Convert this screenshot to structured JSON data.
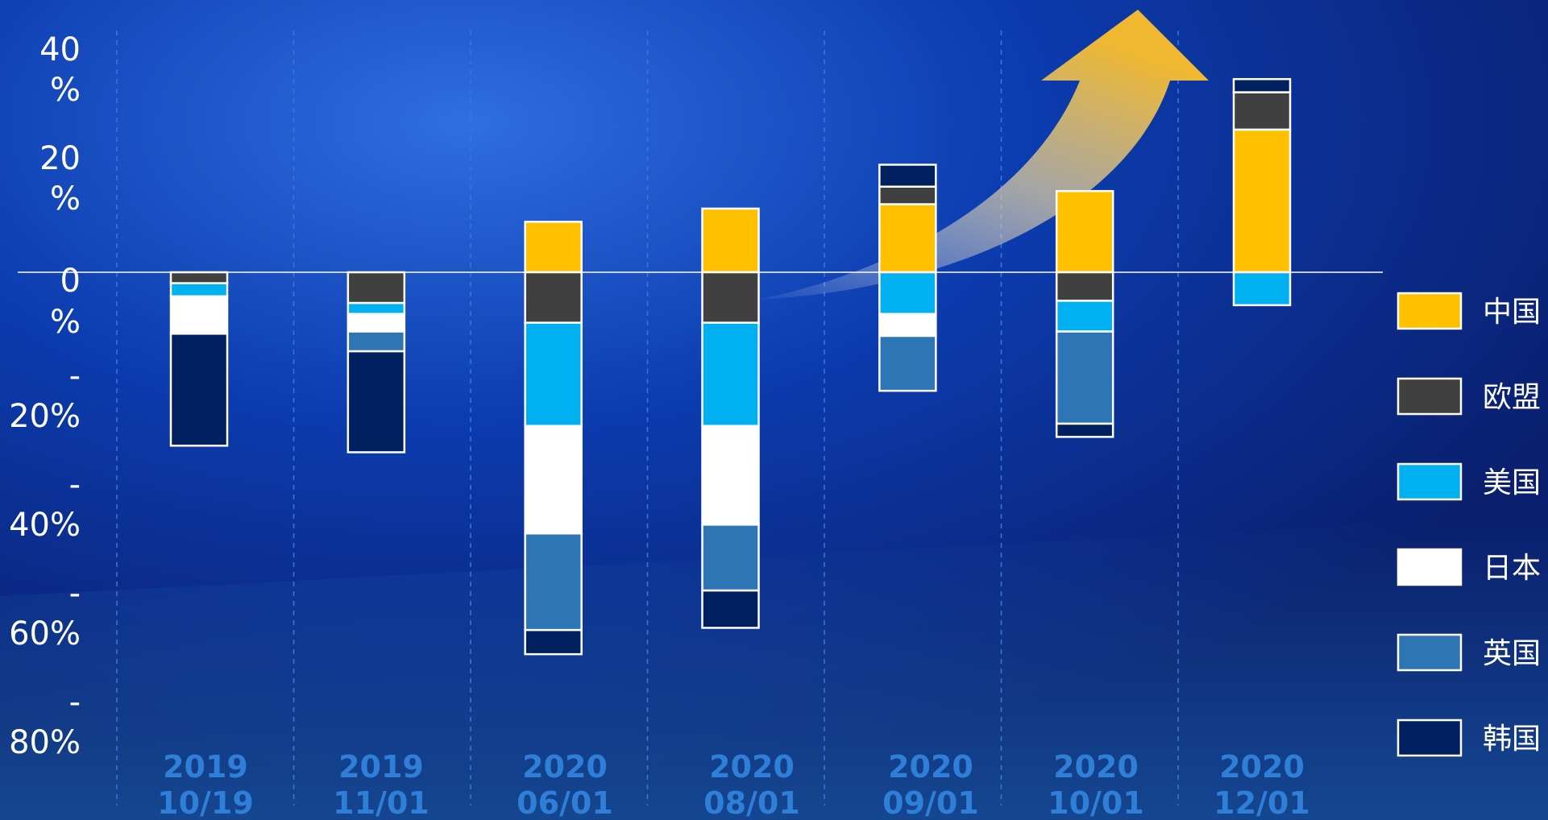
{
  "chart_data": {
    "type": "bar",
    "stacked": true,
    "categories": [
      [
        "2019",
        "10/19"
      ],
      [
        "2019",
        "11/01"
      ],
      [
        "2020",
        "06/01"
      ],
      [
        "2020",
        "08/01"
      ],
      [
        "2020",
        "09/01"
      ],
      [
        "2020",
        "10/01"
      ],
      [
        "2020",
        "12/01"
      ]
    ],
    "y_ticks": [
      [
        "40",
        "%"
      ],
      [
        "20",
        "%"
      ],
      [
        "0",
        "%"
      ],
      [
        "-",
        "20%"
      ],
      [
        "-",
        "40%"
      ],
      [
        "-",
        "60%"
      ],
      [
        "-",
        "80%"
      ]
    ],
    "ylim": [
      -88,
      47
    ],
    "grid": "vertical dashed",
    "legend_position": "right",
    "series": [
      {
        "name": "中国",
        "color": "#ffc000",
        "values": [
          0,
          0,
          11.5,
          14.5,
          15.5,
          18.5,
          32.5
        ]
      },
      {
        "name": "欧盟",
        "color": "#404040",
        "values": [
          -2.5,
          -7,
          -11.5,
          -11.5,
          4,
          -6.5,
          8.5
        ]
      },
      {
        "name": "美国",
        "color": "#00b0f0",
        "values": [
          -3,
          -2.5,
          -23.5,
          -23.5,
          -9.5,
          -7,
          -7.5
        ]
      },
      {
        "name": "日本",
        "color": "#ffffff",
        "values": [
          -8.5,
          -4,
          -24.5,
          -22.5,
          -5,
          0,
          0
        ]
      },
      {
        "name": "英国",
        "color": "#2e75b6",
        "values": [
          0,
          -4.5,
          -22,
          -15,
          -12.5,
          -21,
          0
        ]
      },
      {
        "name": "韩国",
        "color": "#002060",
        "values": [
          -25.5,
          -23,
          -5.5,
          -8.5,
          5,
          -3,
          3
        ]
      }
    ]
  }
}
